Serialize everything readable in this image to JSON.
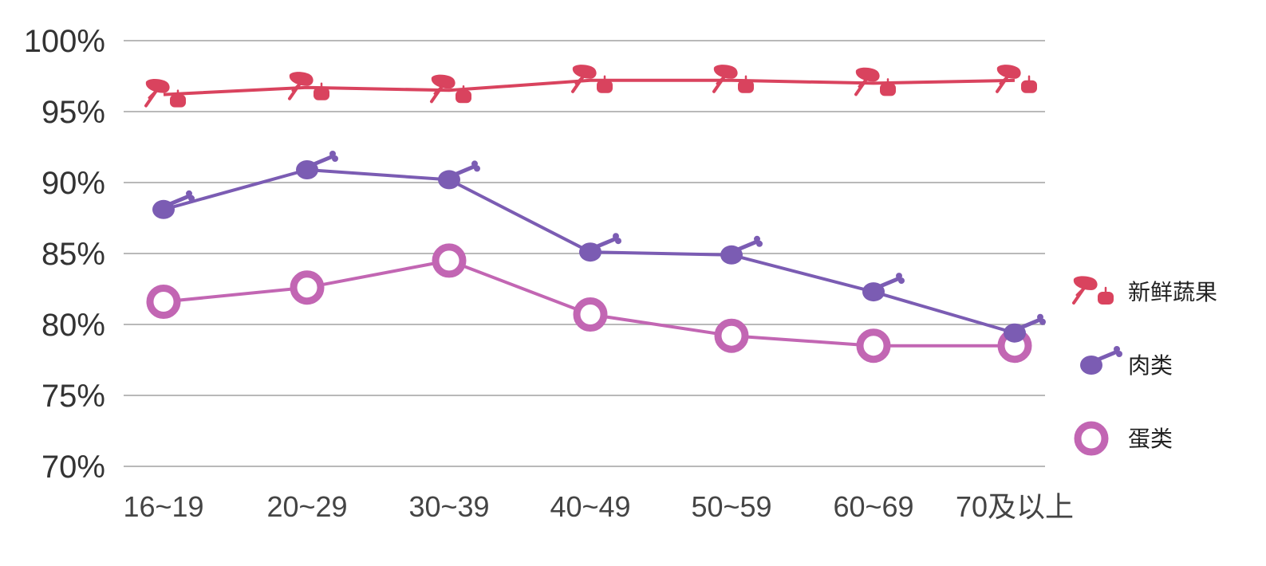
{
  "chart_data": {
    "type": "line",
    "categories": [
      "16~19",
      "20~29",
      "30~39",
      "40~49",
      "50~59",
      "60~69",
      "70及以上"
    ],
    "y_ticks": [
      "100%",
      "95%",
      "90%",
      "85%",
      "80%",
      "75%",
      "70%"
    ],
    "ylim": [
      70,
      100
    ],
    "grid": true,
    "legend_position": "right",
    "series": [
      {
        "name": "新鲜蔬果",
        "color": "#d9435e",
        "marker": "vegetable-fruit-icon",
        "values": [
          96.2,
          96.7,
          96.5,
          97.2,
          97.2,
          97.0,
          97.2
        ]
      },
      {
        "name": "肉类",
        "color": "#7b5cb3",
        "marker": "drumstick-icon",
        "values": [
          88.1,
          90.9,
          90.2,
          85.1,
          84.9,
          82.3,
          79.4
        ]
      },
      {
        "name": "蛋类",
        "color": "#c266b3",
        "marker": "egg-ring-icon",
        "values": [
          81.6,
          82.6,
          84.5,
          80.7,
          79.2,
          78.5,
          78.5
        ]
      }
    ]
  }
}
